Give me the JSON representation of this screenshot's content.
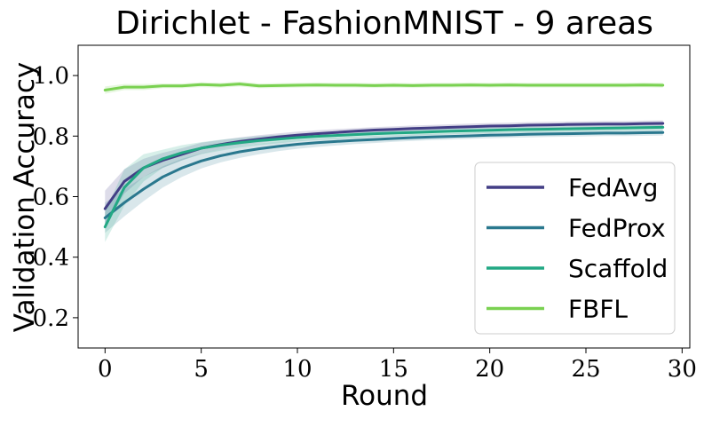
{
  "chart_data": {
    "type": "line",
    "title": "Dirichlet - FashionMNIST - 9 areas",
    "xlabel": "Round",
    "ylabel": "Validation Accuracy",
    "xlim": [
      -1.4,
      30.4
    ],
    "ylim": [
      0.1,
      1.1
    ],
    "xticks": [
      0,
      5,
      10,
      15,
      20,
      25,
      30
    ],
    "yticks": [
      0.2,
      0.4,
      0.6,
      0.8,
      1.0
    ],
    "xtick_labels": [
      "0",
      "5",
      "10",
      "15",
      "20",
      "25",
      "30"
    ],
    "ytick_labels": [
      "0.2",
      "0.4",
      "0.6",
      "0.8",
      "1.0"
    ],
    "grid": false,
    "legend_position": "lower-right",
    "series": [
      {
        "name": "FedAvg",
        "color": "#433e85",
        "x": [
          0,
          1,
          2,
          3,
          4,
          5,
          6,
          7,
          8,
          9,
          10,
          11,
          12,
          13,
          14,
          15,
          16,
          17,
          18,
          19,
          20,
          21,
          22,
          23,
          24,
          25,
          26,
          27,
          28,
          29
        ],
        "y": [
          0.56,
          0.65,
          0.695,
          0.72,
          0.74,
          0.76,
          0.772,
          0.782,
          0.79,
          0.797,
          0.803,
          0.808,
          0.812,
          0.816,
          0.82,
          0.822,
          0.825,
          0.827,
          0.829,
          0.831,
          0.833,
          0.834,
          0.836,
          0.837,
          0.838,
          0.839,
          0.84,
          0.84,
          0.841,
          0.842
        ],
        "band": [
          0.06,
          0.04,
          0.03,
          0.025,
          0.02,
          0.018,
          0.015,
          0.014,
          0.013,
          0.012,
          0.012,
          0.011,
          0.011,
          0.01,
          0.01,
          0.01,
          0.01,
          0.01,
          0.01,
          0.01,
          0.01,
          0.01,
          0.01,
          0.01,
          0.01,
          0.01,
          0.01,
          0.01,
          0.01,
          0.01
        ]
      },
      {
        "name": "FedProx",
        "color": "#2a788e",
        "x": [
          0,
          1,
          2,
          3,
          4,
          5,
          6,
          7,
          8,
          9,
          10,
          11,
          12,
          13,
          14,
          15,
          16,
          17,
          18,
          19,
          20,
          21,
          22,
          23,
          24,
          25,
          26,
          27,
          28,
          29
        ],
        "y": [
          0.53,
          0.58,
          0.625,
          0.665,
          0.695,
          0.718,
          0.735,
          0.748,
          0.758,
          0.766,
          0.773,
          0.778,
          0.782,
          0.786,
          0.789,
          0.792,
          0.795,
          0.797,
          0.799,
          0.801,
          0.803,
          0.804,
          0.806,
          0.807,
          0.808,
          0.809,
          0.81,
          0.81,
          0.811,
          0.812
        ],
        "band": [
          0.05,
          0.045,
          0.04,
          0.035,
          0.03,
          0.025,
          0.022,
          0.02,
          0.018,
          0.016,
          0.015,
          0.014,
          0.013,
          0.012,
          0.012,
          0.011,
          0.011,
          0.01,
          0.01,
          0.01,
          0.01,
          0.01,
          0.01,
          0.01,
          0.01,
          0.01,
          0.01,
          0.01,
          0.01,
          0.01
        ]
      },
      {
        "name": "Scaffold",
        "color": "#22a884",
        "x": [
          0,
          1,
          2,
          3,
          4,
          5,
          6,
          7,
          8,
          9,
          10,
          11,
          12,
          13,
          14,
          15,
          16,
          17,
          18,
          19,
          20,
          21,
          22,
          23,
          24,
          25,
          26,
          27,
          28,
          29
        ],
        "y": [
          0.5,
          0.63,
          0.695,
          0.725,
          0.745,
          0.76,
          0.77,
          0.778,
          0.785,
          0.79,
          0.795,
          0.799,
          0.802,
          0.805,
          0.808,
          0.81,
          0.812,
          0.814,
          0.816,
          0.818,
          0.819,
          0.821,
          0.822,
          0.823,
          0.824,
          0.825,
          0.826,
          0.827,
          0.828,
          0.829
        ],
        "band": [
          0.05,
          0.06,
          0.045,
          0.03,
          0.025,
          0.02,
          0.018,
          0.016,
          0.015,
          0.014,
          0.013,
          0.012,
          0.012,
          0.011,
          0.011,
          0.01,
          0.01,
          0.01,
          0.01,
          0.01,
          0.01,
          0.01,
          0.01,
          0.01,
          0.01,
          0.01,
          0.01,
          0.01,
          0.01,
          0.01
        ]
      },
      {
        "name": "FBFL",
        "color": "#7ad151",
        "x": [
          0,
          1,
          2,
          3,
          4,
          5,
          6,
          7,
          8,
          9,
          10,
          11,
          12,
          13,
          14,
          15,
          16,
          17,
          18,
          19,
          20,
          21,
          22,
          23,
          24,
          25,
          26,
          27,
          28,
          29
        ],
        "y": [
          0.952,
          0.962,
          0.962,
          0.966,
          0.966,
          0.97,
          0.968,
          0.972,
          0.966,
          0.967,
          0.968,
          0.969,
          0.968,
          0.968,
          0.967,
          0.968,
          0.967,
          0.968,
          0.968,
          0.969,
          0.968,
          0.969,
          0.968,
          0.968,
          0.968,
          0.968,
          0.968,
          0.968,
          0.969,
          0.968
        ],
        "band": [
          0.012,
          0.01,
          0.01,
          0.008,
          0.008,
          0.008,
          0.008,
          0.008,
          0.008,
          0.008,
          0.008,
          0.008,
          0.008,
          0.008,
          0.008,
          0.008,
          0.008,
          0.008,
          0.008,
          0.008,
          0.008,
          0.008,
          0.008,
          0.008,
          0.008,
          0.008,
          0.008,
          0.008,
          0.008,
          0.008
        ]
      }
    ]
  }
}
